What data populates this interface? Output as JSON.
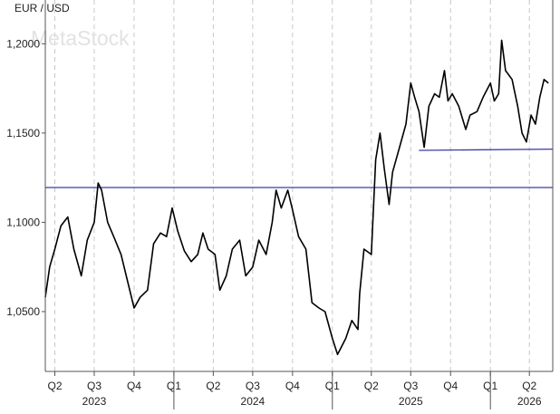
{
  "symbol": "EUR / USD",
  "watermark": "MetaStock",
  "colors": {
    "price_line": "#000000",
    "support_line": "#3a3aa8",
    "grid": "#c8c8c8",
    "axis": "#555555",
    "text": "#222222",
    "watermark": "#e2e2e2"
  },
  "chart_data": {
    "type": "line",
    "title": "EUR / USD",
    "xlabel": "",
    "ylabel": "",
    "x_range": [
      "2023-03-10",
      "2026-05-25"
    ],
    "ylim": [
      1.0165,
      1.2245
    ],
    "grid": {
      "vertical": true,
      "horizontal": false
    },
    "y_ticks": [
      "1,2000",
      "1,1500",
      "1,1000",
      "1,0500"
    ],
    "y_tick_values": [
      1.2,
      1.15,
      1.1,
      1.05
    ],
    "quarter_ticks": [
      {
        "label": "Q2",
        "date": "2023-04-01"
      },
      {
        "label": "Q3",
        "date": "2023-07-01"
      },
      {
        "label": "Q4",
        "date": "2023-10-01"
      },
      {
        "label": "Q1",
        "date": "2024-01-01"
      },
      {
        "label": "Q2",
        "date": "2024-04-01"
      },
      {
        "label": "Q3",
        "date": "2024-07-01"
      },
      {
        "label": "Q4",
        "date": "2024-10-01"
      },
      {
        "label": "Q1",
        "date": "2025-01-01"
      },
      {
        "label": "Q2",
        "date": "2025-04-01"
      },
      {
        "label": "Q3",
        "date": "2025-07-01"
      },
      {
        "label": "Q4",
        "date": "2025-10-01"
      },
      {
        "label": "Q1",
        "date": "2026-01-01"
      },
      {
        "label": "Q2",
        "date": "2026-04-01"
      }
    ],
    "year_ticks": [
      {
        "label": "2023",
        "date": "2023-07-01",
        "boundary": null
      },
      {
        "label": "2024",
        "date": "2024-07-01",
        "boundary": "2024-01-01"
      },
      {
        "label": "2025",
        "date": "2025-07-01",
        "boundary": "2025-01-01"
      },
      {
        "label": "2026",
        "date": "2026-04-01",
        "boundary": "2026-01-01"
      }
    ],
    "series": [
      {
        "values": [
          [
            "2023-03-10",
            1.058
          ],
          [
            "2023-03-20",
            1.075
          ],
          [
            "2023-04-01",
            1.085
          ],
          [
            "2023-04-15",
            1.098
          ],
          [
            "2023-05-01",
            1.103
          ],
          [
            "2023-05-15",
            1.085
          ],
          [
            "2023-06-01",
            1.07
          ],
          [
            "2023-06-15",
            1.09
          ],
          [
            "2023-07-01",
            1.1
          ],
          [
            "2023-07-10",
            1.122
          ],
          [
            "2023-07-18",
            1.118
          ],
          [
            "2023-08-01",
            1.1
          ],
          [
            "2023-08-15",
            1.092
          ],
          [
            "2023-09-01",
            1.082
          ],
          [
            "2023-09-15",
            1.068
          ],
          [
            "2023-10-01",
            1.052
          ],
          [
            "2023-10-15",
            1.058
          ],
          [
            "2023-11-01",
            1.062
          ],
          [
            "2023-11-15",
            1.088
          ],
          [
            "2023-12-01",
            1.094
          ],
          [
            "2023-12-15",
            1.092
          ],
          [
            "2023-12-28",
            1.108
          ],
          [
            "2024-01-10",
            1.095
          ],
          [
            "2024-01-25",
            1.084
          ],
          [
            "2024-02-10",
            1.078
          ],
          [
            "2024-02-25",
            1.082
          ],
          [
            "2024-03-08",
            1.094
          ],
          [
            "2024-03-20",
            1.085
          ],
          [
            "2024-04-05",
            1.082
          ],
          [
            "2024-04-16",
            1.062
          ],
          [
            "2024-05-01",
            1.07
          ],
          [
            "2024-05-15",
            1.085
          ],
          [
            "2024-06-01",
            1.09
          ],
          [
            "2024-06-15",
            1.07
          ],
          [
            "2024-07-01",
            1.075
          ],
          [
            "2024-07-15",
            1.09
          ],
          [
            "2024-08-01",
            1.082
          ],
          [
            "2024-08-15",
            1.1
          ],
          [
            "2024-08-24",
            1.118
          ],
          [
            "2024-09-05",
            1.108
          ],
          [
            "2024-09-20",
            1.118
          ],
          [
            "2024-10-01",
            1.107
          ],
          [
            "2024-10-15",
            1.092
          ],
          [
            "2024-11-01",
            1.085
          ],
          [
            "2024-11-15",
            1.055
          ],
          [
            "2024-12-01",
            1.052
          ],
          [
            "2024-12-15",
            1.05
          ],
          [
            "2025-01-01",
            1.035
          ],
          [
            "2025-01-13",
            1.026
          ],
          [
            "2025-02-01",
            1.035
          ],
          [
            "2025-02-15",
            1.045
          ],
          [
            "2025-03-01",
            1.04
          ],
          [
            "2025-03-05",
            1.06
          ],
          [
            "2025-03-15",
            1.085
          ],
          [
            "2025-04-01",
            1.082
          ],
          [
            "2025-04-11",
            1.135
          ],
          [
            "2025-04-21",
            1.15
          ],
          [
            "2025-05-01",
            1.13
          ],
          [
            "2025-05-12",
            1.11
          ],
          [
            "2025-05-20",
            1.128
          ],
          [
            "2025-06-05",
            1.142
          ],
          [
            "2025-06-20",
            1.155
          ],
          [
            "2025-07-01",
            1.178
          ],
          [
            "2025-07-10",
            1.17
          ],
          [
            "2025-07-20",
            1.162
          ],
          [
            "2025-08-01",
            1.142
          ],
          [
            "2025-08-12",
            1.165
          ],
          [
            "2025-08-25",
            1.172
          ],
          [
            "2025-09-05",
            1.17
          ],
          [
            "2025-09-17",
            1.185
          ],
          [
            "2025-09-25",
            1.168
          ],
          [
            "2025-10-05",
            1.172
          ],
          [
            "2025-10-20",
            1.165
          ],
          [
            "2025-11-05",
            1.152
          ],
          [
            "2025-11-15",
            1.16
          ],
          [
            "2025-12-01",
            1.162
          ],
          [
            "2025-12-15",
            1.17
          ],
          [
            "2026-01-01",
            1.178
          ],
          [
            "2026-01-10",
            1.168
          ],
          [
            "2026-01-20",
            1.172
          ],
          [
            "2026-01-27",
            1.202
          ],
          [
            "2026-02-05",
            1.185
          ],
          [
            "2026-02-20",
            1.18
          ],
          [
            "2026-03-05",
            1.165
          ],
          [
            "2026-03-15",
            1.15
          ],
          [
            "2026-03-25",
            1.145
          ],
          [
            "2026-04-05",
            1.16
          ],
          [
            "2026-04-15",
            1.155
          ],
          [
            "2026-04-25",
            1.17
          ],
          [
            "2026-05-05",
            1.18
          ],
          [
            "2026-05-15",
            1.178
          ]
        ]
      }
    ],
    "reference_lines": [
      {
        "type": "horizontal",
        "y": 1.1195,
        "x_start": "2023-03-10",
        "x_end": "2026-05-25"
      },
      {
        "type": "trendline",
        "points": [
          [
            "2025-07-20",
            1.1403
          ],
          [
            "2026-05-25",
            1.141
          ]
        ]
      }
    ]
  }
}
